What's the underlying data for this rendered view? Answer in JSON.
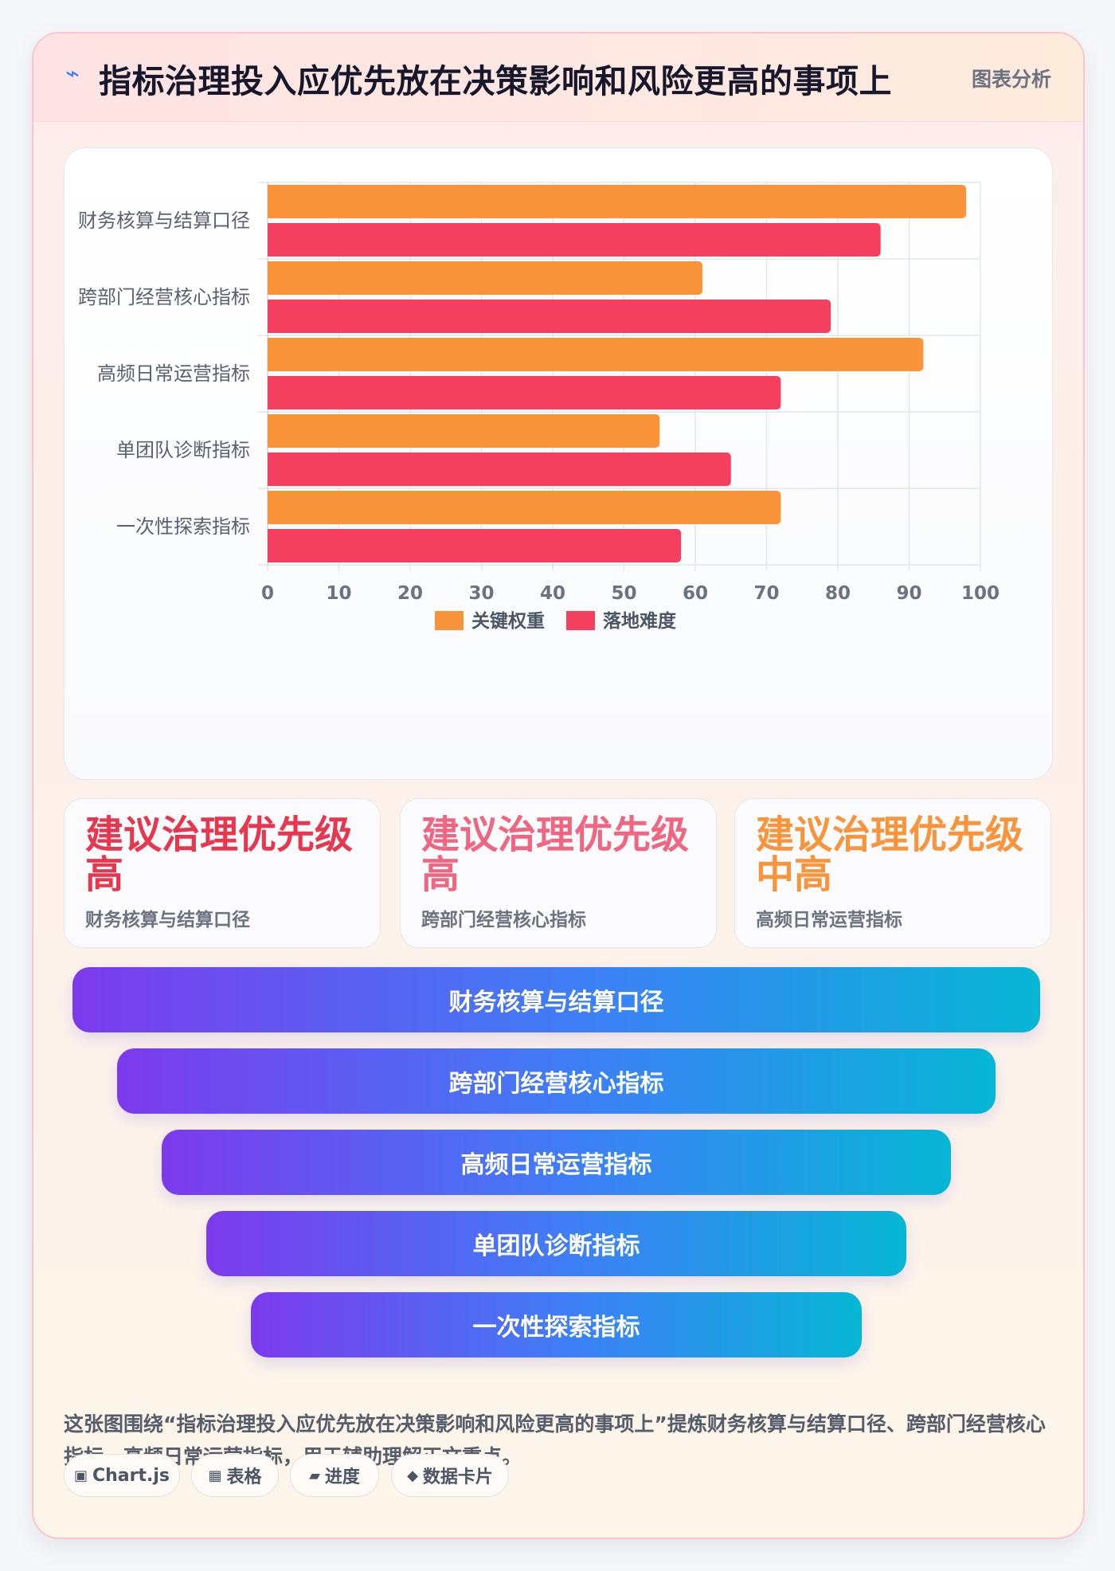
{
  "header": {
    "icon": "lightning-icon",
    "title": "指标治理投入应优先放在决策影响和风险更高的事项上",
    "tag": "图表分析"
  },
  "chart_data": {
    "type": "bar",
    "orientation": "horizontal",
    "categories": [
      "财务核算与结算口径",
      "跨部门经营核心指标",
      "高频日常运营指标",
      "单团队诊断指标",
      "一次性探索指标"
    ],
    "series": [
      {
        "name": "关键权重",
        "values": [
          98,
          61,
          92,
          55,
          72
        ],
        "color": "#f9943b"
      },
      {
        "name": "落地难度",
        "values": [
          86,
          79,
          72,
          65,
          58
        ],
        "color": "#f43f5e"
      }
    ],
    "xlim": [
      0,
      100
    ],
    "xticks": [
      0,
      10,
      20,
      30,
      40,
      50,
      60,
      70,
      80,
      90,
      100
    ],
    "grid": true,
    "legend_position": "bottom"
  },
  "summaries": [
    {
      "big": "建议治理优先级高",
      "sub": "财务核算与结算口径",
      "color": "#e8364f"
    },
    {
      "big": "建议治理优先级高",
      "sub": "跨部门经营核心指标",
      "color": "#f06680"
    },
    {
      "big": "建议治理优先级中高",
      "sub": "高频日常运营指标",
      "color": "#f9943b"
    }
  ],
  "funnel": [
    "财务核算与结算口径",
    "跨部门经营核心指标",
    "高频日常运营指标",
    "单团队诊断指标",
    "一次性探索指标"
  ],
  "description": "这张图围绕“指标治理投入应优先放在决策影响和风险更高的事项上”提炼财务核算与结算口径、跨部门经营核心指标、高频日常运营指标，用于辅助理解正文重点。",
  "tags": [
    {
      "icon": "chart-icon",
      "glyph": "▣",
      "label": "Chart.js"
    },
    {
      "icon": "table-icon",
      "glyph": "▦",
      "label": "表格"
    },
    {
      "icon": "progress-icon",
      "glyph": "▰",
      "label": "进度"
    },
    {
      "icon": "diamond-icon",
      "glyph": "◆",
      "label": "数据卡片"
    }
  ]
}
